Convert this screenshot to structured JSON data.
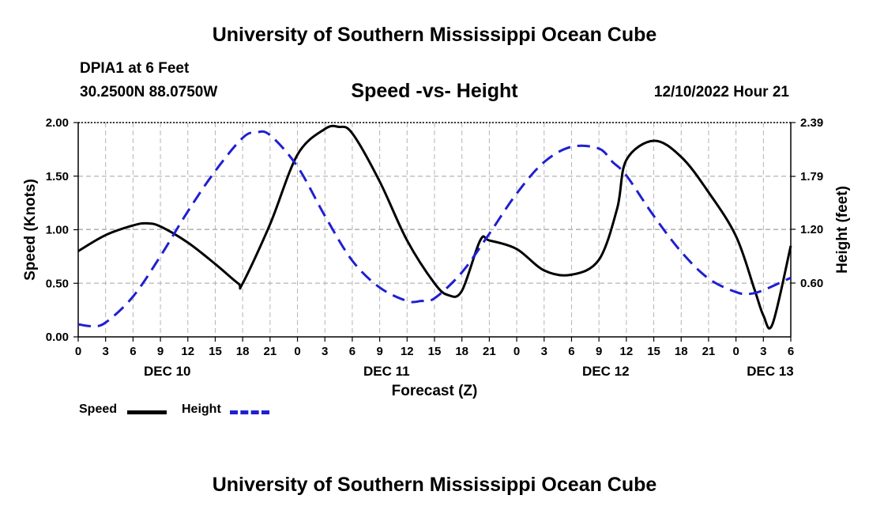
{
  "header": {
    "title": "University of Southern Mississippi Ocean Cube",
    "station": "DPIA1 at 6 Feet",
    "coords": "30.2500N  88.0750W",
    "datetime": "12/10/2022 Hour 21"
  },
  "footer": {
    "title": "University of Southern Mississippi Ocean Cube"
  },
  "legend": {
    "speed_label": "Speed",
    "height_label": "Height"
  },
  "colors": {
    "speed": "#000000",
    "height": "#1f1fd1",
    "grid": "#b4b4b4"
  },
  "chart_data": {
    "type": "line",
    "title": "Speed -vs- Height",
    "xlabel": "Forecast (Z)",
    "ylabel": "Speed (Knots)",
    "y2label": "Height (feet)",
    "xlim": [
      0,
      78
    ],
    "ylim": [
      0,
      2.0
    ],
    "y2lim": [
      0,
      2.39
    ],
    "x_ticks": [
      0,
      3,
      6,
      9,
      12,
      15,
      18,
      21,
      24,
      27,
      30,
      33,
      36,
      39,
      42,
      45,
      48,
      51,
      54,
      57,
      60,
      63,
      66,
      69,
      72,
      75,
      78
    ],
    "x_tick_labels": [
      "0",
      "3",
      "6",
      "9",
      "12",
      "15",
      "18",
      "21",
      "0",
      "3",
      "6",
      "9",
      "12",
      "15",
      "18",
      "21",
      "0",
      "3",
      "6",
      "9",
      "12",
      "15",
      "18",
      "21",
      "0",
      "3",
      "6"
    ],
    "date_labels": [
      {
        "x": 9.75,
        "label": "DEC 10"
      },
      {
        "x": 33.75,
        "label": "DEC 11"
      },
      {
        "x": 57.75,
        "label": "DEC 12"
      },
      {
        "x": 75.75,
        "label": "DEC 13"
      }
    ],
    "y_ticks": [
      0,
      0.5,
      1.0,
      1.5,
      2.0
    ],
    "y_tick_labels": [
      "0.00",
      "0.50",
      "1.00",
      "1.50",
      "2.00"
    ],
    "y2_ticks": [
      0.6,
      1.2,
      1.79,
      2.39
    ],
    "y2_tick_labels": [
      "0.60",
      "1.20",
      "1.79",
      "2.39"
    ],
    "series": [
      {
        "name": "Speed",
        "axis": "left",
        "style": "solid",
        "x": [
          0,
          3,
          6,
          7.5,
          9,
          12,
          15,
          17.5,
          18,
          21,
          24,
          27,
          28.5,
          30,
          33,
          36,
          39,
          40.5,
          42,
          44,
          45,
          48,
          51,
          54,
          57,
          59,
          60,
          63,
          66,
          69,
          72,
          74,
          75,
          76,
          78
        ],
        "values": [
          0.8,
          0.95,
          1.04,
          1.06,
          1.03,
          0.88,
          0.68,
          0.5,
          0.5,
          1.05,
          1.7,
          1.94,
          1.96,
          1.9,
          1.45,
          0.9,
          0.5,
          0.39,
          0.43,
          0.9,
          0.9,
          0.82,
          0.62,
          0.58,
          0.72,
          1.2,
          1.65,
          1.83,
          1.68,
          1.35,
          0.94,
          0.45,
          0.2,
          0.12,
          0.85
        ]
      },
      {
        "name": "Height",
        "axis": "right",
        "style": "dashed",
        "x": [
          0,
          1.5,
          3,
          6,
          9,
          12,
          15,
          18,
          19.5,
          21,
          24,
          27,
          30,
          33,
          36,
          37.5,
          39,
          42,
          45,
          48,
          51,
          54,
          57,
          58.5,
          60,
          63,
          66,
          69,
          72,
          73.5,
          75,
          78
        ],
        "values": [
          0.14,
          0.12,
          0.16,
          0.45,
          0.9,
          1.4,
          1.85,
          2.22,
          2.28,
          2.25,
          1.9,
          1.35,
          0.85,
          0.55,
          0.4,
          0.4,
          0.43,
          0.72,
          1.15,
          1.6,
          1.95,
          2.12,
          2.1,
          1.95,
          1.8,
          1.35,
          0.95,
          0.65,
          0.5,
          0.48,
          0.52,
          0.66
        ]
      }
    ]
  }
}
